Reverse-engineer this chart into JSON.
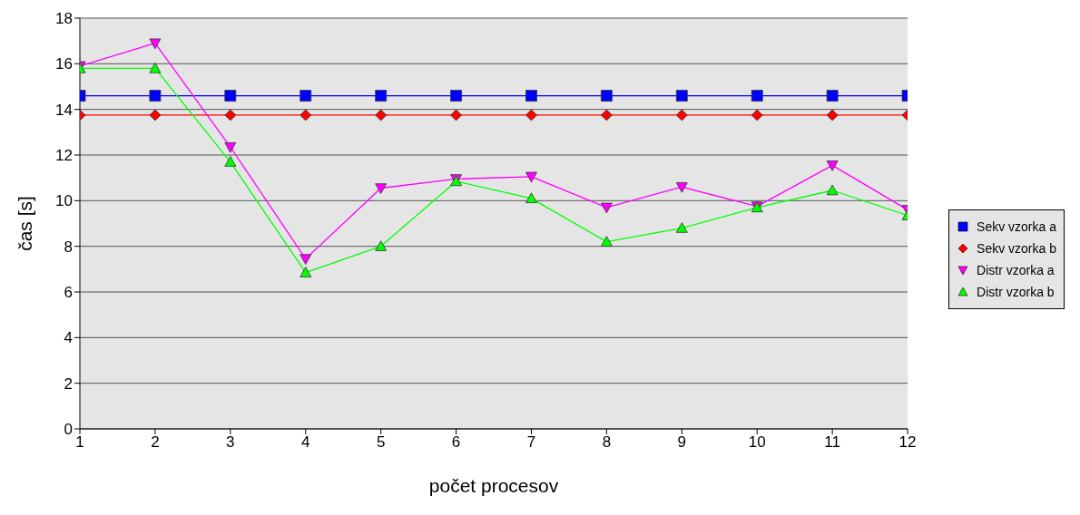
{
  "chart_data": {
    "type": "line",
    "xlabel": "počet procesov",
    "ylabel": "čas [s]",
    "x": [
      1,
      2,
      3,
      4,
      5,
      6,
      7,
      8,
      9,
      10,
      11,
      12
    ],
    "xlim": [
      1,
      12
    ],
    "xticks": [
      1,
      2,
      3,
      4,
      5,
      6,
      7,
      8,
      9,
      10,
      11,
      12
    ],
    "ylim": [
      0,
      18
    ],
    "yticks": [
      0,
      2,
      4,
      6,
      8,
      10,
      12,
      14,
      16,
      18
    ],
    "grid": "y",
    "legend": "right",
    "line_style": "solid",
    "series": [
      {
        "name": "Sekv vzorka a",
        "color": "#0000ff",
        "marker": "square",
        "values": [
          14.6,
          14.6,
          14.6,
          14.6,
          14.6,
          14.6,
          14.6,
          14.6,
          14.6,
          14.6,
          14.6,
          14.6
        ]
      },
      {
        "name": "Sekv vzorka b",
        "color": "#ff0000",
        "marker": "diamond",
        "values": [
          13.75,
          13.75,
          13.75,
          13.75,
          13.75,
          13.75,
          13.75,
          13.75,
          13.75,
          13.75,
          13.75,
          13.75
        ]
      },
      {
        "name": "Distr vzorka a",
        "color": "#ff00ff",
        "marker": "triangle-down",
        "values": [
          15.9,
          16.9,
          12.35,
          7.45,
          10.55,
          10.95,
          11.05,
          9.7,
          10.6,
          9.75,
          11.55,
          9.6
        ]
      },
      {
        "name": "Distr vzorka b",
        "color": "#00ff00",
        "marker": "triangle",
        "values": [
          15.8,
          15.8,
          11.7,
          6.85,
          8.0,
          10.85,
          10.1,
          8.2,
          8.8,
          9.7,
          10.45,
          9.35
        ]
      }
    ]
  }
}
